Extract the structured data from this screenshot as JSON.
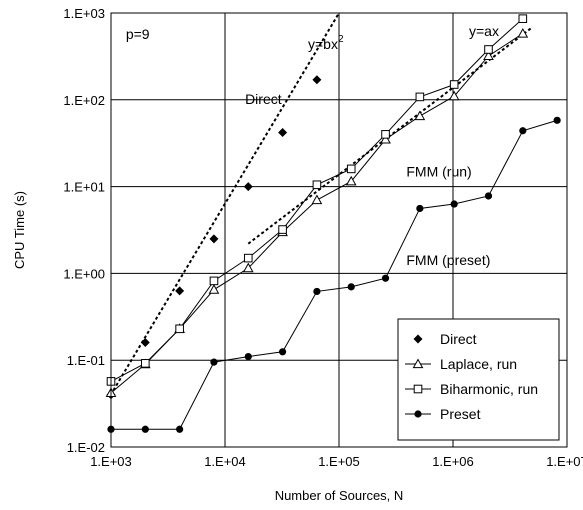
{
  "chart_data": {
    "type": "scatter",
    "title": "",
    "xlabel": "Number of Sources, N",
    "ylabel": "CPU Time (s)",
    "xscale": "log",
    "yscale": "log",
    "xlim": [
      1000,
      10000000
    ],
    "ylim": [
      0.01,
      1000
    ],
    "grid": true,
    "legend_position": "bottom-right",
    "x_tick_labels": [
      "1.E+03",
      "1.E+04",
      "1.E+05",
      "1.E+06",
      "1.E+07"
    ],
    "y_tick_labels": [
      "1.E-02",
      "1.E-01",
      "1.E+00",
      "1.E+01",
      "1.E+02",
      "1.E+03"
    ],
    "series": [
      {
        "name": "Direct",
        "marker": "diamond",
        "line": "none",
        "x": [
          1000,
          2000,
          4000,
          8000,
          16000,
          32000,
          64000
        ],
        "y": [
          0.04,
          0.16,
          0.63,
          2.5,
          10,
          42,
          170
        ]
      },
      {
        "name": "Laplace, run",
        "marker": "triangle-open",
        "line": "solid",
        "x": [
          1000,
          2000,
          4000,
          8000,
          16000,
          32000,
          64000,
          128000,
          256000,
          512000,
          1024000,
          2048000,
          4096000
        ],
        "y": [
          0.042,
          0.09,
          0.23,
          0.65,
          1.15,
          3.0,
          7.0,
          11.5,
          35,
          65,
          110,
          320,
          580
        ]
      },
      {
        "name": "Biharmonic, run",
        "marker": "square-open",
        "line": "solid",
        "x": [
          1000,
          2000,
          4000,
          8000,
          16000,
          32000,
          64000,
          128000,
          256000,
          512000,
          1024000,
          2048000,
          4096000
        ],
        "y": [
          0.057,
          0.092,
          0.23,
          0.82,
          1.5,
          3.2,
          10.5,
          16,
          40,
          108,
          150,
          380,
          860
        ]
      },
      {
        "name": "Preset",
        "marker": "circle-filled",
        "line": "solid",
        "x": [
          1000,
          2000,
          4000,
          8000,
          16000,
          32000,
          64000,
          128000,
          256000,
          512000,
          1024000,
          2048000,
          4096000,
          8192000
        ],
        "y": [
          0.016,
          0.016,
          0.016,
          0.095,
          0.11,
          0.125,
          0.62,
          0.7,
          0.88,
          5.6,
          6.3,
          7.8,
          44,
          58
        ]
      }
    ],
    "fit_lines": [
      {
        "label": "y=bx²",
        "x": [
          1050,
          100000
        ],
        "y": [
          0.045,
          1000
        ]
      },
      {
        "label": "y=ax",
        "x": [
          16000,
          5000000
        ],
        "y": [
          2.2,
          690
        ]
      }
    ],
    "annotations": [
      {
        "text": "p=9",
        "x": 1350,
        "y": 500
      },
      {
        "text": "Direct",
        "x": 15000,
        "y": 90
      },
      {
        "text": "FMM (run)",
        "x": 390000,
        "y": 13
      },
      {
        "text": "FMM (preset)",
        "x": 390000,
        "y": 1.25
      }
    ]
  }
}
